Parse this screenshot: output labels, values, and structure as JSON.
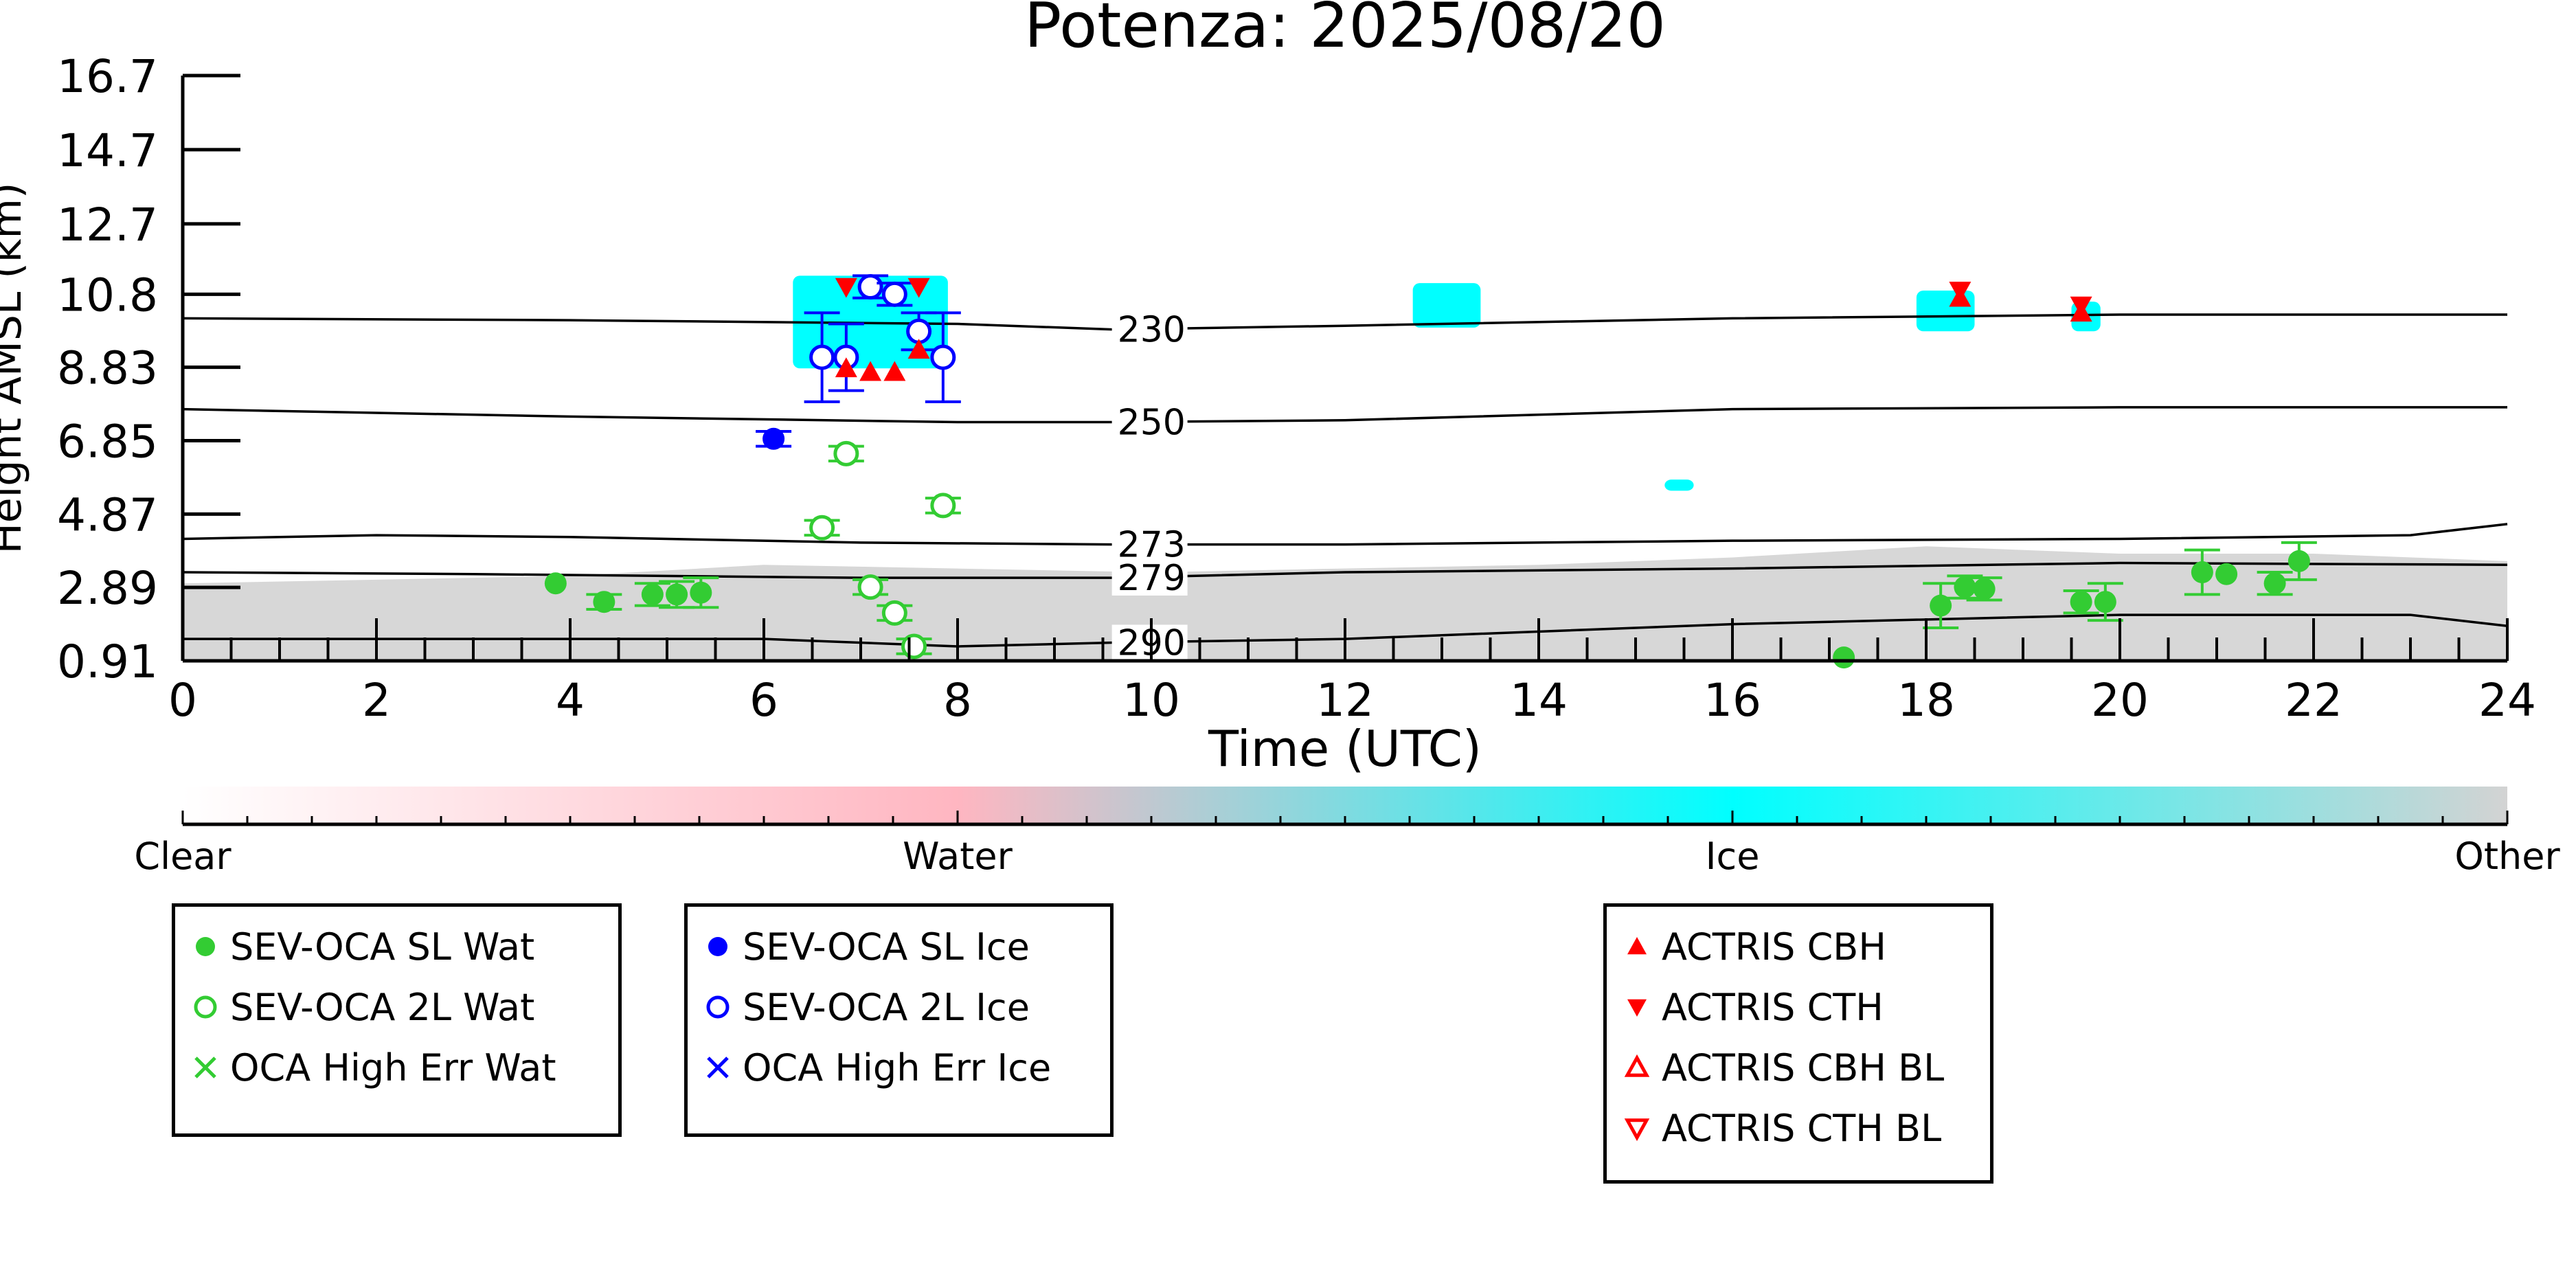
{
  "chart_data": {
    "type": "scatter",
    "title": "Potenza: 2025/08/20",
    "xlabel": "Time (UTC)",
    "ylabel": "Height AMSL (km)",
    "xlim": [
      0,
      24
    ],
    "ylim": [
      0.91,
      16.7
    ],
    "x_ticks": [
      0,
      2,
      4,
      6,
      8,
      10,
      12,
      14,
      16,
      18,
      20,
      22,
      24
    ],
    "y_ticks": [
      "0.91",
      "2.89",
      "4.87",
      "6.85",
      "8.83",
      "10.8",
      "12.7",
      "14.7",
      "16.7"
    ],
    "grid": false,
    "background": {
      "description_colors": {
        "clear": "#ffffff",
        "water": "#ffb6c1",
        "ice": "#00ffff",
        "other": "#d3d3d3"
      },
      "other_layer_top_km": [
        [
          0,
          3.0
        ],
        [
          2,
          3.1
        ],
        [
          4,
          3.2
        ],
        [
          6,
          3.5
        ],
        [
          8,
          3.4
        ],
        [
          10,
          3.3
        ],
        [
          12,
          3.4
        ],
        [
          14,
          3.5
        ],
        [
          16,
          3.7
        ],
        [
          18,
          4.0
        ],
        [
          20,
          3.8
        ],
        [
          22,
          3.8
        ],
        [
          24,
          3.6
        ]
      ],
      "ice_regions": [
        {
          "x": [
            6.3,
            7.9
          ],
          "y": [
            8.8,
            11.3
          ]
        },
        {
          "x": [
            12.7,
            13.4
          ],
          "y": [
            9.9,
            11.1
          ]
        },
        {
          "x": [
            17.9,
            18.5
          ],
          "y": [
            9.8,
            10.9
          ]
        },
        {
          "x": [
            19.5,
            19.8
          ],
          "y": [
            9.8,
            10.6
          ]
        },
        {
          "x": [
            15.3,
            15.6
          ],
          "y": [
            5.5,
            5.8
          ]
        }
      ]
    },
    "isotherms": [
      {
        "label": "230",
        "label_x": 9.65,
        "points": [
          [
            0,
            10.15
          ],
          [
            4,
            10.1
          ],
          [
            8,
            10.0
          ],
          [
            9.6,
            9.85
          ],
          [
            12,
            9.95
          ],
          [
            16,
            10.15
          ],
          [
            20,
            10.25
          ],
          [
            24,
            10.25
          ]
        ]
      },
      {
        "label": "250",
        "label_x": 9.65,
        "points": [
          [
            0,
            7.7
          ],
          [
            4,
            7.5
          ],
          [
            8,
            7.35
          ],
          [
            9.6,
            7.35
          ],
          [
            12,
            7.4
          ],
          [
            16,
            7.7
          ],
          [
            20,
            7.75
          ],
          [
            24,
            7.75
          ]
        ]
      },
      {
        "label": "273",
        "label_x": 9.65,
        "points": [
          [
            0,
            4.2
          ],
          [
            2,
            4.3
          ],
          [
            4,
            4.25
          ],
          [
            7,
            4.1
          ],
          [
            9.6,
            4.05
          ],
          [
            12,
            4.05
          ],
          [
            16,
            4.15
          ],
          [
            20,
            4.2
          ],
          [
            23,
            4.3
          ],
          [
            24,
            4.6
          ]
        ]
      },
      {
        "label": "279",
        "label_x": 9.65,
        "points": [
          [
            0,
            3.3
          ],
          [
            3,
            3.25
          ],
          [
            7,
            3.15
          ],
          [
            9.6,
            3.15
          ],
          [
            12,
            3.3
          ],
          [
            16,
            3.4
          ],
          [
            20,
            3.55
          ],
          [
            24,
            3.5
          ]
        ]
      },
      {
        "label": "290",
        "label_x": 9.65,
        "points": [
          [
            0,
            1.5
          ],
          [
            3,
            1.5
          ],
          [
            6,
            1.5
          ],
          [
            8,
            1.3
          ],
          [
            9.6,
            1.4
          ],
          [
            12,
            1.5
          ],
          [
            16,
            1.9
          ],
          [
            20,
            2.15
          ],
          [
            23,
            2.15
          ],
          [
            24,
            1.85
          ]
        ]
      }
    ],
    "series": [
      {
        "name": "SEV-OCA SL Wat",
        "marker": "filled-circle",
        "color": "#33cc33",
        "points": [
          [
            3.85,
            3.0,
            0
          ],
          [
            4.35,
            2.5,
            0.2
          ],
          [
            4.85,
            2.7,
            0.3
          ],
          [
            5.1,
            2.7,
            0.35
          ],
          [
            5.35,
            2.75,
            0.4
          ],
          [
            17.15,
            1.0,
            0
          ],
          [
            18.15,
            2.4,
            0.6
          ],
          [
            18.4,
            2.9,
            0.3
          ],
          [
            18.6,
            2.85,
            0.3
          ],
          [
            19.6,
            2.5,
            0.3
          ],
          [
            19.85,
            2.5,
            0.5
          ],
          [
            20.85,
            3.3,
            0.6
          ],
          [
            21.1,
            3.25,
            0
          ],
          [
            21.6,
            3.0,
            0.3
          ],
          [
            21.85,
            3.6,
            0.5
          ]
        ]
      },
      {
        "name": "SEV-OCA 2L Wat",
        "marker": "open-circle",
        "color": "#33cc33",
        "points": [
          [
            6.6,
            4.5,
            0.2
          ],
          [
            6.85,
            6.5,
            0.2
          ],
          [
            7.1,
            2.9,
            0.2
          ],
          [
            7.35,
            2.2,
            0.2
          ],
          [
            7.55,
            1.3,
            0.2
          ],
          [
            7.85,
            5.1,
            0.2
          ]
        ]
      },
      {
        "name": "OCA High Err Wat",
        "marker": "x",
        "color": "#33cc33",
        "points": []
      },
      {
        "name": "SEV-OCA SL Ice",
        "marker": "filled-circle",
        "color": "#0000ff",
        "points": [
          [
            6.1,
            6.9,
            0.2
          ]
        ]
      },
      {
        "name": "SEV-OCA 2L Ice",
        "marker": "open-circle",
        "color": "#0000ff",
        "points": [
          [
            6.6,
            9.1,
            1.2
          ],
          [
            6.85,
            9.1,
            0.9
          ],
          [
            7.1,
            11.0,
            0.3
          ],
          [
            7.35,
            10.8,
            0.3
          ],
          [
            7.6,
            9.8,
            0.5
          ],
          [
            7.85,
            9.1,
            1.2
          ]
        ]
      },
      {
        "name": "OCA High Err Ice",
        "marker": "x",
        "color": "#0000ff",
        "points": []
      },
      {
        "name": "ACTRIS CBH",
        "marker": "triangle-up",
        "color": "#ff0000",
        "points": [
          [
            6.85,
            8.8,
            0
          ],
          [
            7.1,
            8.7,
            0
          ],
          [
            7.35,
            8.7,
            0
          ],
          [
            7.6,
            9.3,
            0
          ],
          [
            18.35,
            10.7,
            0
          ],
          [
            19.6,
            10.3,
            0
          ]
        ]
      },
      {
        "name": "ACTRIS CTH",
        "marker": "triangle-down",
        "color": "#ff0000",
        "points": [
          [
            6.85,
            11.0,
            0
          ],
          [
            7.6,
            11.0,
            0
          ],
          [
            18.35,
            10.9,
            0
          ],
          [
            19.6,
            10.5,
            0
          ]
        ]
      },
      {
        "name": "ACTRIS CBH BL",
        "marker": "open-triangle-up",
        "color": "#ff0000",
        "points": []
      },
      {
        "name": "ACTRIS CTH BL",
        "marker": "open-triangle-down",
        "color": "#ff0000",
        "points": []
      }
    ],
    "colorbar": {
      "labels": [
        "Clear",
        "Water",
        "Ice",
        "Other"
      ],
      "colors": [
        "#ffffff",
        "#ffb6c1",
        "#00ffff",
        "#d3d3d3"
      ]
    },
    "legend": [
      {
        "placement": "bottom-left",
        "entries": [
          0,
          1,
          2
        ]
      },
      {
        "placement": "bottom-center-left",
        "entries": [
          3,
          4,
          5
        ]
      },
      {
        "placement": "bottom-center-right",
        "entries": [
          6,
          7,
          8,
          9
        ]
      }
    ]
  }
}
